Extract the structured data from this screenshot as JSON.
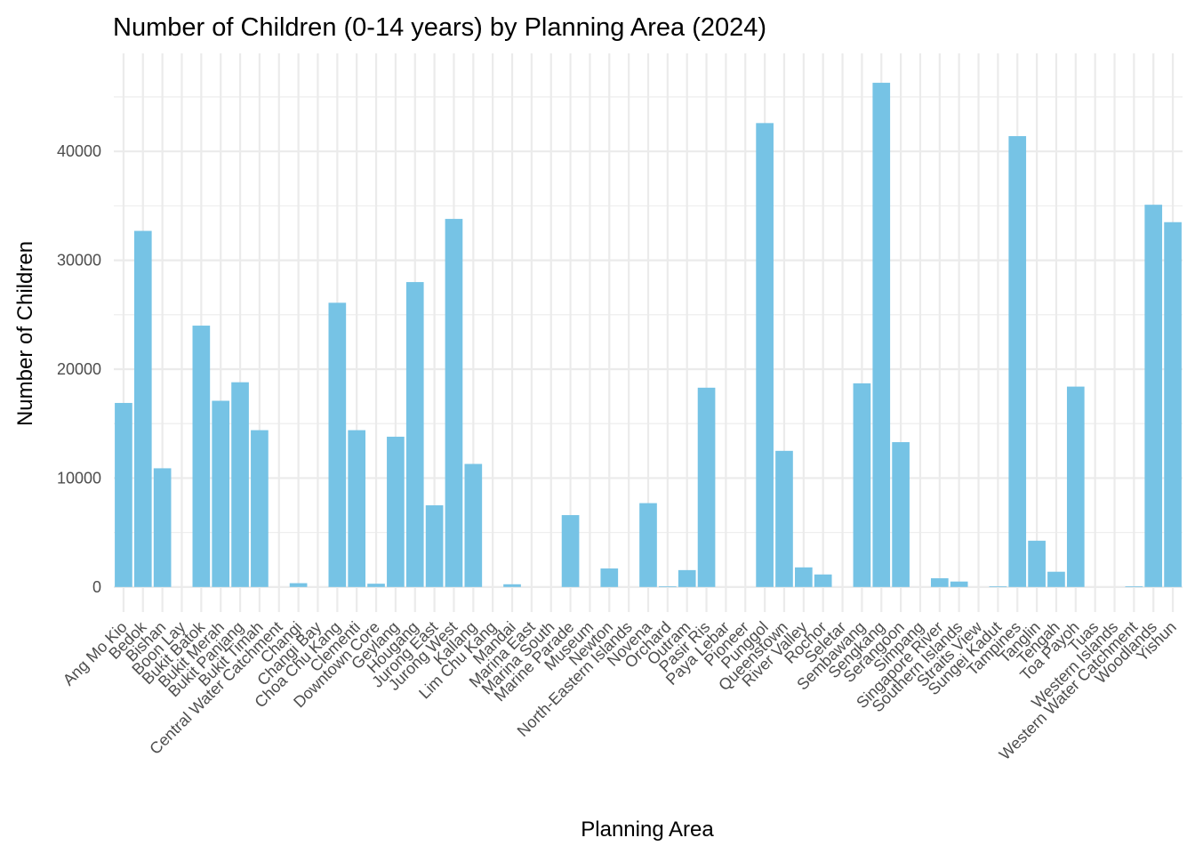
{
  "chart_data": {
    "type": "bar",
    "title": "Number of Children (0-14 years) by Planning Area (2024)",
    "xlabel": "Planning Area",
    "ylabel": "Number of Children",
    "ylim": [
      -2300,
      49000
    ],
    "yticks": [
      0,
      10000,
      20000,
      30000,
      40000
    ],
    "ytick_labels": [
      "0",
      "10000",
      "20000",
      "30000",
      "40000"
    ],
    "grid": true,
    "bar_color": "#76c3e5",
    "categories": [
      "Ang Mo Kio",
      "Bedok",
      "Bishan",
      "Boon Lay",
      "Bukit Batok",
      "Bukit Merah",
      "Bukit Panjang",
      "Bukit Timah",
      "Central Water Catchment",
      "Changi",
      "Changi Bay",
      "Choa Chu Kang",
      "Clementi",
      "Downtown Core",
      "Geylang",
      "Hougang",
      "Jurong East",
      "Jurong West",
      "Kallang",
      "Lim Chu Kang",
      "Mandai",
      "Marina East",
      "Marina South",
      "Marine Parade",
      "Museum",
      "Newton",
      "North-Eastern Islands",
      "Novena",
      "Orchard",
      "Outram",
      "Pasir Ris",
      "Paya Lebar",
      "Pioneer",
      "Punggol",
      "Queenstown",
      "River Valley",
      "Rochor",
      "Seletar",
      "Sembawang",
      "Sengkang",
      "Serangoon",
      "Simpang",
      "Singapore River",
      "Southern Islands",
      "Straits View",
      "Sungei Kadut",
      "Tampines",
      "Tanglin",
      "Tengah",
      "Toa Payoh",
      "Tuas",
      "Western Islands",
      "Western Water Catchment",
      "Woodlands",
      "Yishun"
    ],
    "values": [
      16900,
      32700,
      10900,
      0,
      24000,
      17100,
      18800,
      14400,
      0,
      350,
      0,
      26100,
      14400,
      300,
      13800,
      28000,
      7500,
      33800,
      11300,
      0,
      250,
      0,
      0,
      6600,
      0,
      1700,
      0,
      7700,
      50,
      1550,
      18300,
      0,
      0,
      42600,
      12500,
      1800,
      1150,
      0,
      18700,
      46300,
      13300,
      0,
      800,
      500,
      0,
      50,
      41400,
      4250,
      1400,
      18400,
      0,
      0,
      50,
      35100,
      33500
    ]
  }
}
